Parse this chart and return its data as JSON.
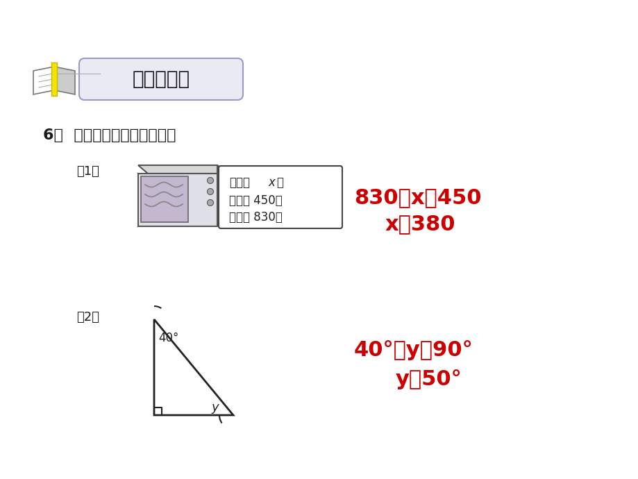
{
  "bg_color": "#ffffff",
  "title_text": "作业提升练",
  "question_label": "6．  看图列方程，并解方程。",
  "part1_label": "（1）",
  "box_line1_a": "现价：",
  "box_line1_b": "x",
  "box_line1_c": "元",
  "box_line2": "优惠： 450元",
  "box_line3": "原价： 830元",
  "eq1_line1": "830－x＝450",
  "eq1_line2": "x＝380",
  "part2_label": "（2）",
  "angle_label": "40°",
  "y_label": "y",
  "eq2_line1": "40°＋y＝90°",
  "eq2_line2": "y＝50°",
  "red_color": "#cc0000",
  "dark_color": "#1a1a1a",
  "fig_w": 9.2,
  "fig_h": 6.9,
  "dpi": 100
}
